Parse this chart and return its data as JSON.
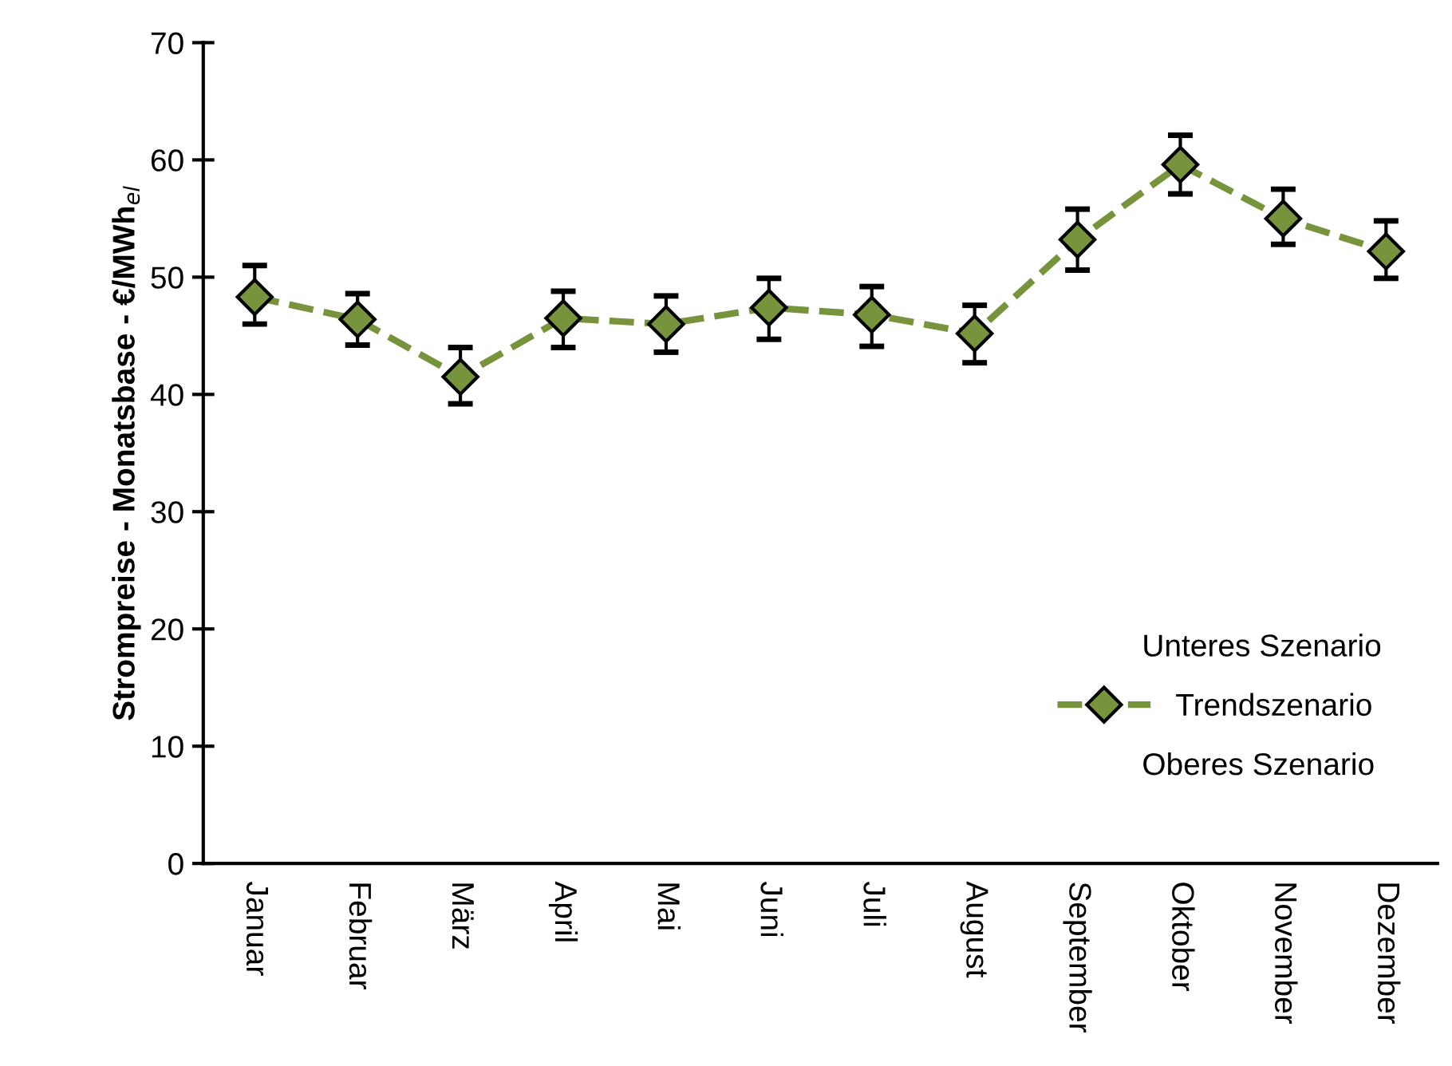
{
  "chart_data": {
    "type": "line",
    "ylabel": "Strompreise - Monatsbase - €/MWh$_{el}$",
    "categories": [
      "Januar",
      "Februar",
      "März",
      "April",
      "Mai",
      "Juni",
      "Juli",
      "August",
      "September",
      "Oktober",
      "November",
      "Dezember"
    ],
    "series": [
      {
        "name": "Trendszenario",
        "color": "#77933c",
        "values": [
          48.3,
          46.4,
          41.5,
          46.5,
          46.0,
          47.4,
          46.8,
          45.2,
          53.2,
          59.6,
          55.0,
          52.2
        ],
        "errors": [
          [
            46.0,
            51.0
          ],
          [
            44.2,
            48.6
          ],
          [
            39.2,
            44.0
          ],
          [
            44.0,
            48.8
          ],
          [
            43.6,
            48.4
          ],
          [
            44.7,
            49.9
          ],
          [
            44.1,
            49.2
          ],
          [
            42.7,
            47.6
          ],
          [
            50.6,
            55.8
          ],
          [
            57.1,
            62.1
          ],
          [
            52.8,
            57.5
          ],
          [
            49.9,
            54.8
          ]
        ]
      }
    ],
    "marker": "diamond",
    "line_style": "dashed",
    "ylim": [
      0,
      70
    ],
    "yticks": [
      0,
      10,
      20,
      30,
      40,
      50,
      60,
      70
    ],
    "grid": false,
    "legend": "right",
    "annotations": [
      "Unteres Szenario",
      "Oberes Szenario"
    ]
  }
}
